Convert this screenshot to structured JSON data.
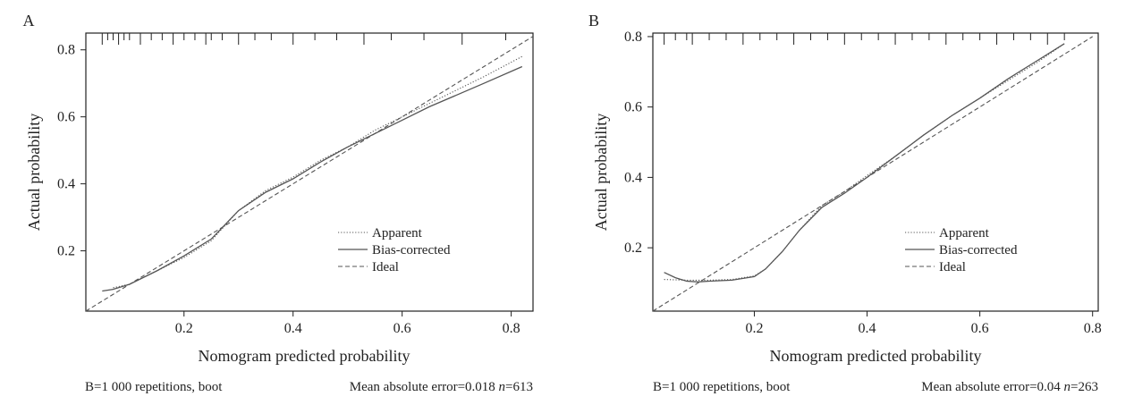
{
  "chart_data": [
    {
      "type": "line",
      "panel_label": "A",
      "xlabel": "Nomogram predicted probability",
      "ylabel": "Actual probability",
      "xlim": [
        0.02,
        0.84
      ],
      "ylim": [
        0.02,
        0.85
      ],
      "x_ticks": [
        0.2,
        0.4,
        0.6,
        0.8
      ],
      "x_tick_labels": [
        "0.2",
        "0.4",
        "0.6",
        "0.8"
      ],
      "y_ticks": [
        0.2,
        0.4,
        0.6,
        0.8
      ],
      "y_tick_labels": [
        "0.2",
        "0.4",
        "0.6",
        "0.8"
      ],
      "grid": false,
      "legend_position": "lower-right",
      "rug": [
        0.05,
        0.06,
        0.07,
        0.08,
        0.09,
        0.1,
        0.12,
        0.14,
        0.16,
        0.18,
        0.2,
        0.22,
        0.24,
        0.25,
        0.27,
        0.3,
        0.33,
        0.36,
        0.4,
        0.44,
        0.48,
        0.53,
        0.58,
        0.64,
        0.71,
        0.79
      ],
      "series": [
        {
          "name": "Apparent",
          "style": "dotted",
          "x": [
            0.07,
            0.1,
            0.15,
            0.2,
            0.25,
            0.3,
            0.35,
            0.4,
            0.45,
            0.5,
            0.55,
            0.6,
            0.65,
            0.7,
            0.75,
            0.82
          ],
          "y": [
            0.09,
            0.1,
            0.14,
            0.18,
            0.23,
            0.32,
            0.38,
            0.42,
            0.47,
            0.51,
            0.56,
            0.6,
            0.64,
            0.68,
            0.72,
            0.78
          ]
        },
        {
          "name": "Bias-corrected",
          "style": "solid",
          "x": [
            0.05,
            0.07,
            0.1,
            0.15,
            0.2,
            0.25,
            0.3,
            0.35,
            0.4,
            0.45,
            0.5,
            0.55,
            0.6,
            0.65,
            0.7,
            0.75,
            0.82
          ],
          "y": [
            0.08,
            0.085,
            0.1,
            0.14,
            0.185,
            0.235,
            0.32,
            0.375,
            0.415,
            0.465,
            0.51,
            0.55,
            0.59,
            0.63,
            0.665,
            0.7,
            0.75
          ]
        },
        {
          "name": "Ideal",
          "style": "dashed",
          "x": [
            0.02,
            0.84
          ],
          "y": [
            0.02,
            0.84
          ]
        }
      ],
      "footer_left": "B=1 000 repetitions, boot",
      "footer_right_prefix": "Mean absolute error=0.018 ",
      "footer_right_n": "n",
      "footer_right_suffix": "=613"
    },
    {
      "type": "line",
      "panel_label": "B",
      "xlabel": "Nomogram predicted probability",
      "ylabel": "Actual probability",
      "xlim": [
        0.02,
        0.81
      ],
      "ylim": [
        0.02,
        0.81
      ],
      "x_ticks": [
        0.2,
        0.4,
        0.6,
        0.8
      ],
      "x_tick_labels": [
        "0.2",
        "0.4",
        "0.6",
        "0.8"
      ],
      "y_ticks": [
        0.2,
        0.4,
        0.6,
        0.8
      ],
      "y_tick_labels": [
        "0.2",
        "0.4",
        "0.6",
        "0.8"
      ],
      "grid": false,
      "legend_position": "lower-right",
      "rug": [
        0.04,
        0.06,
        0.08,
        0.09,
        0.12,
        0.15,
        0.18,
        0.21,
        0.24,
        0.27,
        0.3,
        0.33,
        0.36,
        0.39,
        0.42,
        0.45,
        0.48,
        0.51,
        0.54,
        0.57,
        0.6,
        0.63,
        0.66,
        0.69,
        0.72,
        0.75
      ],
      "series": [
        {
          "name": "Apparent",
          "style": "dotted",
          "x": [
            0.04,
            0.08,
            0.12,
            0.16,
            0.2,
            0.22,
            0.25,
            0.28,
            0.32,
            0.36,
            0.4,
            0.45,
            0.5,
            0.55,
            0.6,
            0.65,
            0.7,
            0.75
          ],
          "y": [
            0.11,
            0.108,
            0.108,
            0.11,
            0.12,
            0.14,
            0.19,
            0.25,
            0.32,
            0.36,
            0.405,
            0.46,
            0.52,
            0.575,
            0.625,
            0.675,
            0.725,
            0.78
          ]
        },
        {
          "name": "Bias-corrected",
          "style": "solid",
          "x": [
            0.04,
            0.06,
            0.08,
            0.1,
            0.12,
            0.16,
            0.2,
            0.22,
            0.25,
            0.28,
            0.32,
            0.36,
            0.4,
            0.45,
            0.5,
            0.55,
            0.6,
            0.65,
            0.7,
            0.75
          ],
          "y": [
            0.13,
            0.115,
            0.105,
            0.103,
            0.105,
            0.108,
            0.118,
            0.14,
            0.19,
            0.25,
            0.315,
            0.355,
            0.4,
            0.46,
            0.52,
            0.575,
            0.625,
            0.68,
            0.73,
            0.78
          ]
        },
        {
          "name": "Ideal",
          "style": "dashed",
          "x": [
            0.02,
            0.8
          ],
          "y": [
            0.02,
            0.8
          ]
        }
      ],
      "footer_left": "B=1 000 repetitions, boot",
      "footer_right_prefix": "Mean absolute error=0.04 ",
      "footer_right_n": "n",
      "footer_right_suffix": "=263"
    }
  ],
  "colors": {
    "axis": "#222222",
    "series": "#555555"
  }
}
